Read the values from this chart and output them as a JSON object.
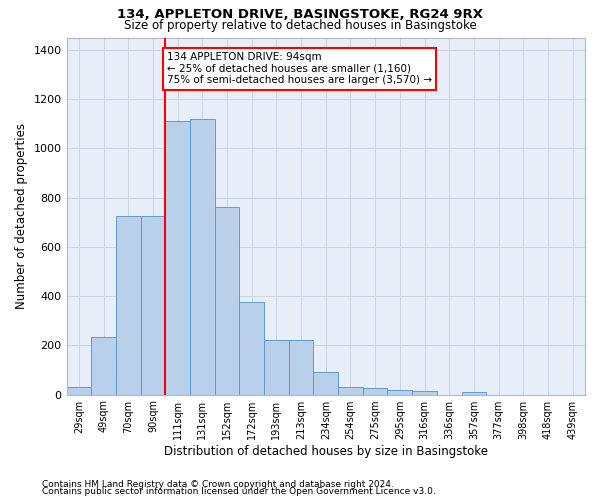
{
  "title1": "134, APPLETON DRIVE, BASINGSTOKE, RG24 9RX",
  "title2": "Size of property relative to detached houses in Basingstoke",
  "xlabel": "Distribution of detached houses by size in Basingstoke",
  "ylabel": "Number of detached properties",
  "footnote1": "Contains HM Land Registry data © Crown copyright and database right 2024.",
  "footnote2": "Contains public sector information licensed under the Open Government Licence v3.0.",
  "annotation_line1": "134 APPLETON DRIVE: 94sqm",
  "annotation_line2": "← 25% of detached houses are smaller (1,160)",
  "annotation_line3": "75% of semi-detached houses are larger (3,570) →",
  "bar_color": "#b8d0ea",
  "bar_edge_color": "#5b9bd5",
  "grid_color": "#c8d4e8",
  "bg_color": "#e8eef8",
  "categories": [
    "29sqm",
    "49sqm",
    "70sqm",
    "90sqm",
    "111sqm",
    "131sqm",
    "152sqm",
    "172sqm",
    "193sqm",
    "213sqm",
    "234sqm",
    "254sqm",
    "275sqm",
    "295sqm",
    "316sqm",
    "336sqm",
    "357sqm",
    "377sqm",
    "398sqm",
    "418sqm",
    "439sqm"
  ],
  "values": [
    30,
    235,
    725,
    725,
    1110,
    1120,
    760,
    375,
    220,
    220,
    90,
    30,
    25,
    20,
    15,
    0,
    10,
    0,
    0,
    0,
    0
  ],
  "red_line_index": 3.5,
  "ylim": [
    0,
    1450
  ],
  "yticks": [
    0,
    200,
    400,
    600,
    800,
    1000,
    1200,
    1400
  ],
  "title_fontsize": 9.5,
  "subtitle_fontsize": 8.5,
  "ylabel_fontsize": 8.5,
  "xlabel_fontsize": 8.5,
  "tick_fontsize": 7,
  "footnote_fontsize": 6.5,
  "annotation_fontsize": 7.5
}
